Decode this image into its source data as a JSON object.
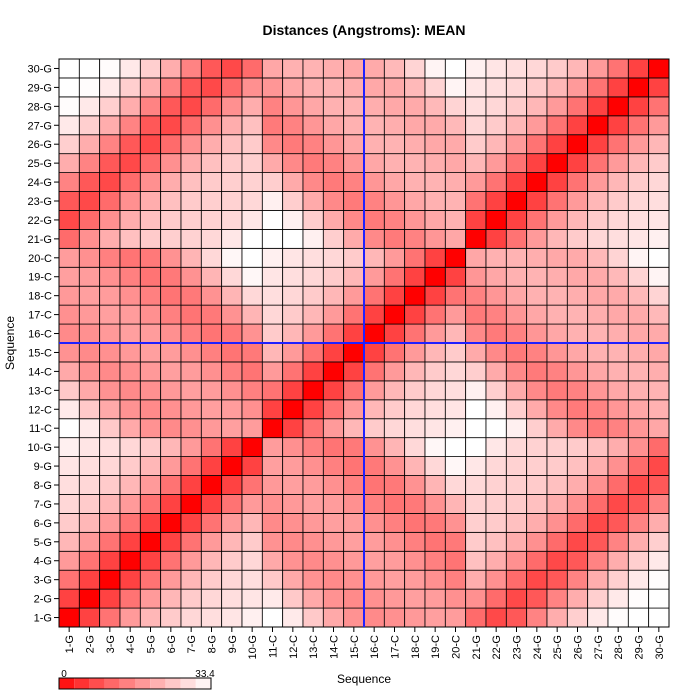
{
  "chart_data": {
    "type": "heatmap",
    "title": "Distances (Angstroms):  MEAN",
    "xlabel": "Sequence",
    "ylabel": "Sequence",
    "labels": [
      "1-G",
      "2-G",
      "3-G",
      "4-G",
      "5-G",
      "6-G",
      "7-G",
      "8-G",
      "9-G",
      "10-G",
      "11-C",
      "12-C",
      "13-C",
      "14-C",
      "15-C",
      "16-C",
      "17-C",
      "18-C",
      "19-C",
      "20-C",
      "21-G",
      "22-G",
      "23-G",
      "24-G",
      "25-G",
      "26-G",
      "27-G",
      "28-G",
      "29-G",
      "30-G"
    ],
    "value_range": [
      0,
      33.4
    ],
    "color_scale": {
      "low": "#ff0000",
      "high": "#ffffff"
    },
    "scale_labels": [
      "0",
      "33.4"
    ],
    "grid": true,
    "crosshair": {
      "x_label": "16-C",
      "y_label": "16-C",
      "color": "#2020ff"
    },
    "legend_position": "bottom-left"
  }
}
